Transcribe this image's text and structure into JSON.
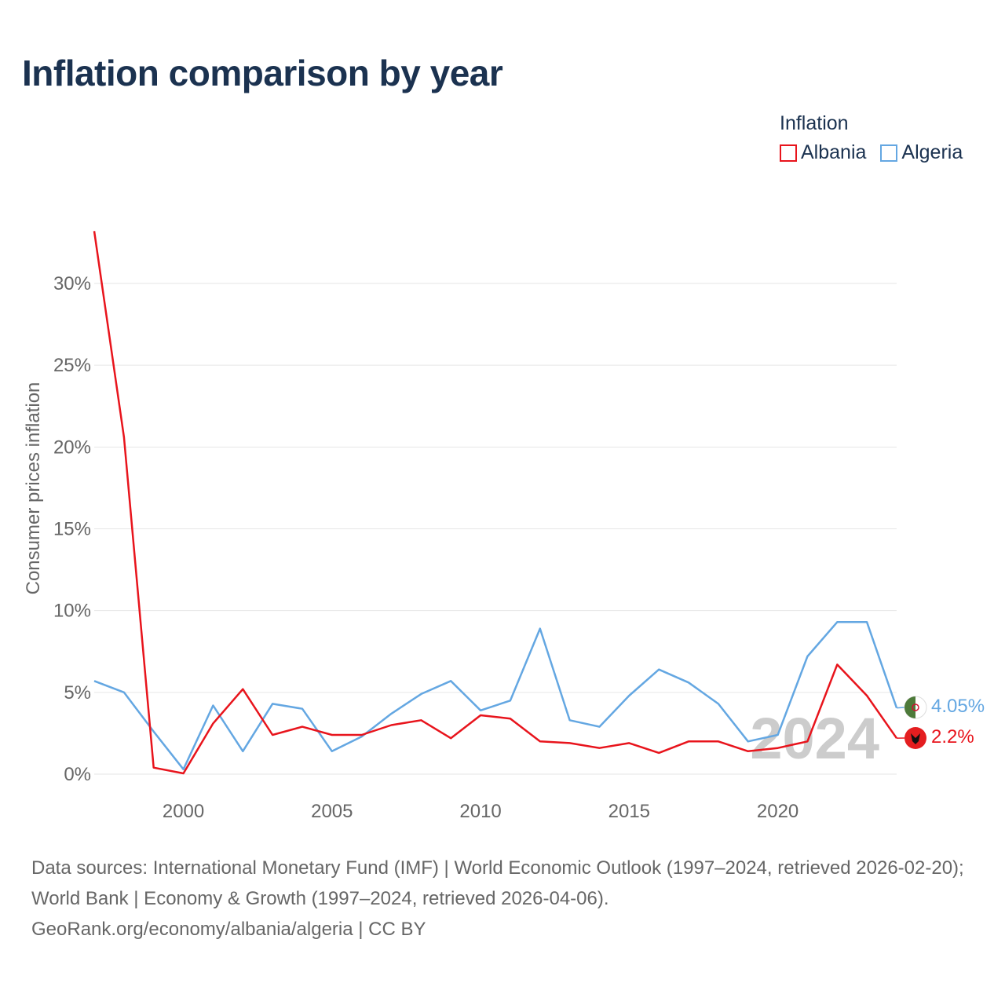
{
  "colors": {
    "albania": "#e8141c",
    "algeria": "#64a7e2",
    "title": "#1b3250",
    "grid": "#e6e6e6",
    "axis_text": "#666666",
    "watermark": "#cccccc"
  },
  "header": {
    "title": "Inflation comparison by year"
  },
  "legend": {
    "title": "Inflation",
    "items": [
      {
        "label": "Albania",
        "color": "#e8141c"
      },
      {
        "label": "Algeria",
        "color": "#64a7e2"
      }
    ]
  },
  "chart_data": {
    "type": "line",
    "title": "Inflation comparison by year",
    "ylabel": "Consumer prices inflation",
    "xlabel": "",
    "x": [
      1997,
      1998,
      1999,
      2000,
      2001,
      2002,
      2003,
      2004,
      2005,
      2006,
      2007,
      2008,
      2009,
      2010,
      2011,
      2012,
      2013,
      2014,
      2015,
      2016,
      2017,
      2018,
      2019,
      2020,
      2021,
      2022,
      2023,
      2024
    ],
    "xlim": [
      1997,
      2024
    ],
    "ylim": [
      0,
      32
    ],
    "x_ticks": [
      2000,
      2005,
      2010,
      2015,
      2020
    ],
    "x_tick_labels": [
      "2000",
      "2005",
      "2010",
      "2015",
      "2020"
    ],
    "y_ticks": [
      0,
      5,
      10,
      15,
      20,
      25,
      30
    ],
    "y_tick_labels": [
      "0%",
      "5%",
      "10%",
      "15%",
      "20%",
      "25%",
      "30%"
    ],
    "series": [
      {
        "name": "Albania",
        "color": "#e8141c",
        "values": [
          33.2,
          20.6,
          0.4,
          0.05,
          3.1,
          5.2,
          2.4,
          2.9,
          2.4,
          2.4,
          3.0,
          3.3,
          2.2,
          3.6,
          3.4,
          2.0,
          1.9,
          1.6,
          1.9,
          1.3,
          2.0,
          2.0,
          1.4,
          1.6,
          2.0,
          6.7,
          4.8,
          2.2
        ],
        "end_label": "2.2%"
      },
      {
        "name": "Algeria",
        "color": "#64a7e2",
        "values": [
          5.7,
          5.0,
          2.6,
          0.3,
          4.2,
          1.4,
          4.3,
          4.0,
          1.4,
          2.3,
          3.7,
          4.9,
          5.7,
          3.9,
          4.5,
          8.9,
          3.3,
          2.9,
          4.8,
          6.4,
          5.6,
          4.3,
          2.0,
          2.4,
          7.2,
          9.3,
          9.3,
          4.05
        ],
        "end_label": "4.05%"
      }
    ],
    "year_watermark": "2024"
  },
  "footer": {
    "sources": "Data sources: International Monetary Fund (IMF) | World Economic Outlook (1997–2024, retrieved 2026-02-20); World Bank | Economy & Growth (1997–2024, retrieved 2026-04-06).",
    "credit": "GeoRank.org/economy/albania/algeria | CC BY"
  }
}
